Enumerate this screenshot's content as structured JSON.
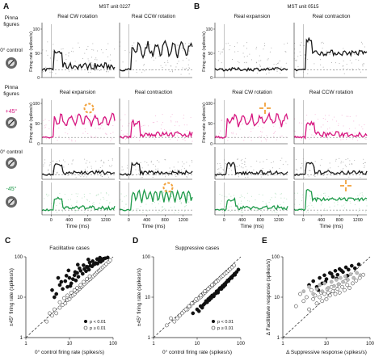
{
  "figure": {
    "panel_a": {
      "letter": "A",
      "unit": "MST unit 0227",
      "col_titles": [
        "Real CW rotation",
        "Real CCW rotation"
      ],
      "row_titles": [
        "Real expansion",
        "Real contraction"
      ]
    },
    "panel_b": {
      "letter": "B",
      "unit": "MST unit 0515",
      "col_titles": [
        "Real expansion",
        "Real contraction"
      ],
      "row_titles": [
        "Real CW rotation",
        "Real CCW rotation"
      ]
    },
    "left_labels": {
      "pinna_top": [
        "Pinna",
        "figures"
      ],
      "control_top": "0° control",
      "pinna_mid": [
        "Pinna",
        "figures"
      ],
      "plus45": "+45°",
      "control_mid": "0° control",
      "minus45": "-45°"
    },
    "psth_ylabel": "Firing rate (spikes/s)",
    "psth_xlabel": "Time (ms)",
    "psth_xticks": [
      "0",
      "400",
      "800",
      "1200"
    ],
    "psth_yticks_a": [
      "100",
      "50",
      "0"
    ],
    "psth_yticks_b": [
      "100",
      "50",
      "0"
    ],
    "colors": {
      "black": "#1a1a1a",
      "magenta": "#d6157f",
      "magenta_light": "#f2a6cf",
      "green": "#1e9a4a",
      "green_light": "#a9dcb6",
      "orange": "#f2a13a",
      "gray": "#9a9a9a"
    }
  },
  "chart_data": [
    {
      "type": "scatter",
      "panel": "C",
      "title": "Facilitative cases",
      "xlabel": "0° control firing rate (spikes/s)",
      "ylabel": "±45° firing rate (spikes/s)",
      "xscale": "log",
      "yscale": "log",
      "xlim": [
        1,
        100
      ],
      "ylim": [
        1,
        100
      ],
      "xticks": [
        "1",
        "10",
        "100"
      ],
      "yticks": [
        "1",
        "10",
        "100"
      ],
      "unity_line": true,
      "legend": [
        "p < 0.01",
        "p ≥ 0.01"
      ],
      "legend_position": "bottom-right",
      "series": [
        {
          "name": "p < 0.01",
          "x": [
            4,
            5,
            6,
            7,
            8,
            9,
            10,
            11,
            12,
            13,
            14,
            15,
            16,
            18,
            20,
            22,
            24,
            26,
            28,
            30,
            33,
            36,
            40,
            44,
            48,
            52,
            56,
            60,
            4.5,
            6.5,
            8.5,
            10.5,
            13.5,
            17,
            21,
            25,
            29,
            34,
            38,
            43,
            50,
            58,
            66,
            75,
            5.5,
            9.5,
            15.5,
            27
          ],
          "y": [
            15,
            12,
            20,
            16,
            25,
            18,
            30,
            22,
            28,
            35,
            26,
            40,
            32,
            45,
            38,
            50,
            44,
            55,
            48,
            60,
            58,
            65,
            70,
            68,
            80,
            75,
            85,
            90,
            10,
            24,
            34,
            19,
            42,
            52,
            62,
            57,
            72,
            78,
            66,
            88,
            95,
            82,
            92,
            96,
            30,
            46,
            64,
            86
          ]
        },
        {
          "name": "p ≥ 0.01",
          "x": [
            3,
            4,
            5,
            6,
            7,
            8,
            9,
            10,
            11,
            12,
            13,
            14,
            15,
            16,
            17,
            18,
            19,
            20,
            22,
            24,
            26,
            28,
            30,
            32,
            35,
            38,
            41,
            44,
            47,
            50,
            54,
            58,
            63,
            70,
            78,
            86,
            3.5,
            4.5,
            6,
            7.5,
            9,
            11,
            13,
            15,
            18,
            21,
            25,
            29
          ],
          "y": [
            2.5,
            3.5,
            4,
            5.5,
            6.5,
            7,
            8.5,
            9,
            10.5,
            11,
            12,
            13.5,
            14,
            15.5,
            16,
            17.5,
            18,
            19.5,
            21,
            23,
            25,
            27,
            28,
            31,
            33,
            36,
            39,
            42,
            45,
            47,
            51,
            55,
            60,
            66,
            74,
            82,
            4,
            5,
            7.5,
            9.5,
            11,
            13,
            15,
            17,
            20,
            24,
            28,
            33
          ]
        }
      ]
    },
    {
      "type": "scatter",
      "panel": "D",
      "title": "Suppressive cases",
      "xlabel": "0° control firing rate (spikes/s)",
      "ylabel": "±45° firing rate (spikes/s)",
      "xscale": "log",
      "yscale": "log",
      "xlim": [
        1,
        100
      ],
      "ylim": [
        1,
        100
      ],
      "xticks": [
        "1",
        "10",
        "100"
      ],
      "yticks": [
        "1",
        "10",
        "100"
      ],
      "unity_line": true,
      "legend": [
        "p < 0.01",
        "p ≥ 0.01"
      ],
      "legend_position": "bottom-right",
      "series": [
        {
          "name": "p < 0.01",
          "x": [
            8,
            10,
            12,
            14,
            16,
            18,
            20,
            22,
            25,
            28,
            31,
            34,
            38,
            42,
            46,
            50,
            55,
            60,
            66,
            72,
            80,
            88,
            11,
            15,
            19,
            24,
            30,
            36,
            44,
            52,
            62,
            74,
            13,
            17,
            21,
            27,
            33,
            40
          ],
          "y": [
            4,
            5,
            6,
            6.5,
            8,
            9,
            10,
            11,
            12,
            14,
            15,
            17,
            19,
            21,
            23,
            26,
            28,
            31,
            34,
            38,
            42,
            48,
            4.5,
            7,
            8.5,
            10.5,
            13,
            16,
            20,
            25,
            30,
            36,
            5.5,
            7.5,
            9.5,
            12.5,
            16.5,
            18
          ]
        },
        {
          "name": "p ≥ 0.01",
          "x": [
            2,
            3,
            4,
            5,
            6,
            7,
            8,
            9,
            10,
            11,
            12,
            13,
            14,
            15,
            16,
            17,
            18,
            19,
            20,
            22,
            24,
            26,
            28,
            30,
            33,
            36,
            39,
            43,
            47,
            52,
            57,
            63,
            70,
            2.5,
            3.5,
            4.5,
            5.5,
            6.5,
            7.5,
            9.5,
            12,
            15,
            18,
            22,
            27
          ],
          "y": [
            2,
            2.5,
            3.5,
            4.5,
            5,
            6,
            7,
            8,
            8.5,
            9.5,
            10,
            11,
            12.5,
            13,
            14,
            15,
            16,
            17,
            18,
            19,
            21,
            23,
            25,
            26,
            29,
            32,
            34,
            38,
            41,
            45,
            50,
            55,
            61,
            3,
            3,
            4,
            5,
            6,
            7,
            9,
            11,
            14,
            16,
            20,
            24
          ]
        }
      ]
    },
    {
      "type": "scatter",
      "panel": "E",
      "xlabel": "Δ Suppressive response (spikes/s)",
      "ylabel": "Δ Facilitative response (spikes/s)",
      "xscale": "log",
      "yscale": "log",
      "xlim": [
        1,
        100
      ],
      "ylim": [
        1,
        100
      ],
      "xticks": [
        "1",
        "10",
        "100"
      ],
      "yticks": [
        "1",
        "10",
        "100"
      ],
      "unity_line": true,
      "series": [
        {
          "name": "black",
          "x": [
            4,
            5,
            6,
            7,
            8,
            9,
            10,
            12,
            14,
            16,
            18,
            20,
            24,
            28,
            32,
            38,
            45,
            55,
            6.5,
            9.5,
            13,
            17,
            22,
            30
          ],
          "y": [
            20,
            25,
            18,
            30,
            22,
            35,
            28,
            40,
            32,
            45,
            36,
            50,
            42,
            55,
            48,
            60,
            52,
            65,
            15,
            24,
            38,
            29,
            46,
            34
          ]
        },
        {
          "name": "open",
          "x": [
            2,
            3,
            4,
            5,
            6,
            7,
            8,
            9,
            10,
            11,
            12,
            14,
            16,
            18,
            20,
            23,
            26,
            30,
            34,
            40,
            48,
            58,
            70,
            2.5,
            3.5,
            4.5,
            5.5,
            7.5,
            10.5,
            13,
            19,
            27
          ],
          "y": [
            6,
            8,
            5,
            9,
            7,
            10,
            8,
            12,
            9,
            13,
            11,
            14,
            12,
            16,
            13,
            18,
            15,
            20,
            17,
            22,
            26,
            30,
            36,
            12,
            10,
            15,
            11,
            13,
            16,
            18,
            21,
            25
          ]
        },
        {
          "name": "gray",
          "x": [
            3,
            4,
            5,
            6,
            7,
            8,
            9,
            11,
            13,
            15,
            17,
            19,
            21,
            24,
            27,
            31,
            36,
            42,
            50,
            60
          ],
          "y": [
            14,
            18,
            12,
            16,
            20,
            14,
            22,
            17,
            24,
            19,
            27,
            21,
            30,
            24,
            33,
            27,
            37,
            30,
            40,
            35
          ]
        }
      ]
    }
  ]
}
